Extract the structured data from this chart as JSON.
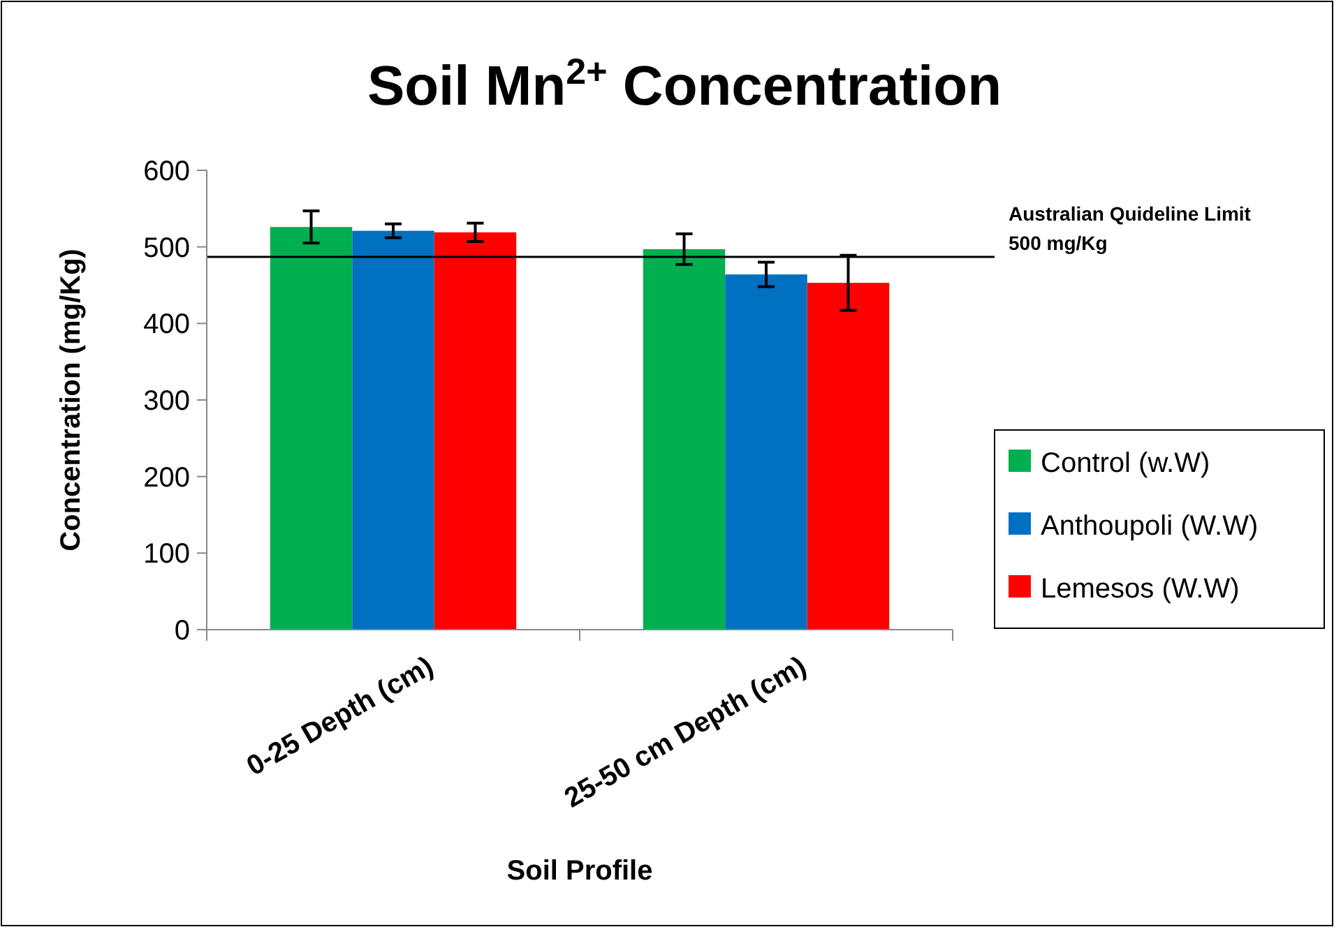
{
  "chart_data": {
    "type": "bar",
    "title": "Soil Mn$^{2+}$ Concentration",
    "xlabel": "Soil Profile",
    "ylabel": "Concentration (mg/Kg)",
    "categories": [
      "0-25 Depth (cm)",
      "25-50 cm Depth (cm)"
    ],
    "series": [
      {
        "name": "Control (w.W)",
        "color": "#00b050",
        "values": [
          526,
          497
        ],
        "errors": [
          21,
          20
        ]
      },
      {
        "name": "Anthoupoli (W.W)",
        "color": "#0070c0",
        "values": [
          521,
          464
        ],
        "errors": [
          9,
          16
        ]
      },
      {
        "name": "Lemesos (W.W)",
        "color": "#ff0000",
        "values": [
          519,
          453
        ],
        "errors": [
          12,
          36
        ]
      }
    ],
    "ylim": [
      0,
      600
    ],
    "yticks": [
      0,
      100,
      200,
      300,
      400,
      500,
      600
    ],
    "grid": false,
    "legend": "right",
    "ref_lines": [
      {
        "axis": "y",
        "value": 487,
        "label": "Australian Quideline Limit\n500 mg/Kg",
        "color": "#000000"
      }
    ]
  }
}
